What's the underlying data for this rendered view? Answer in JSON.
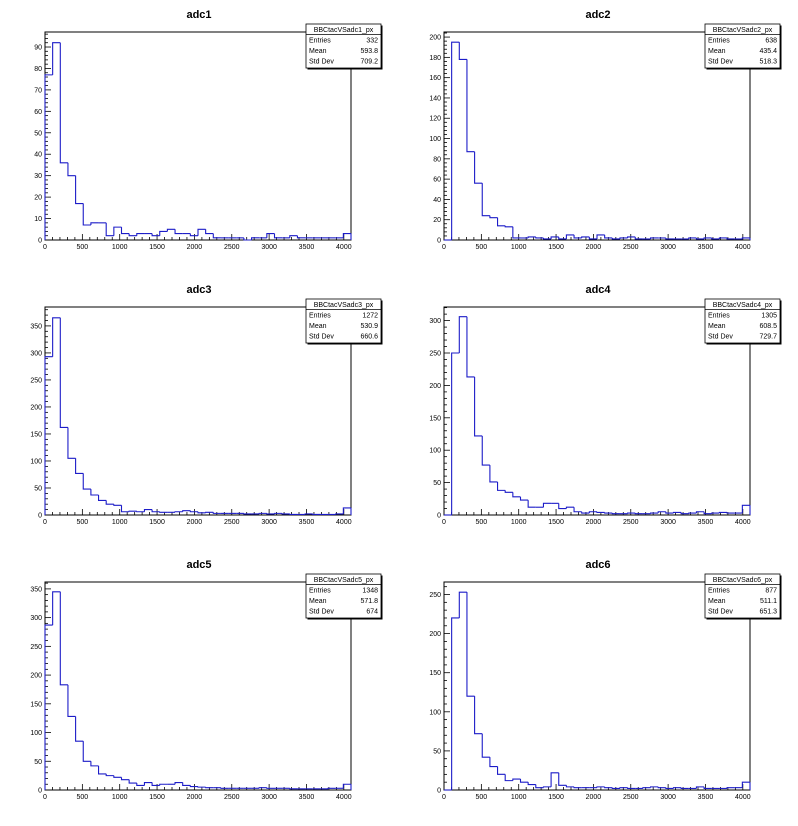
{
  "chart_data": [
    {
      "type": "bar",
      "title": "adc1",
      "xlim": [
        0,
        4096
      ],
      "ylim": [
        0,
        97
      ],
      "x_ticks": [
        0,
        500,
        1000,
        1500,
        2000,
        2500,
        3000,
        3500,
        4000
      ],
      "y_ticks": [
        0,
        10,
        20,
        30,
        40,
        50,
        60,
        70,
        80,
        90
      ],
      "bin_width": 102.4,
      "values": [
        77,
        92,
        36,
        30,
        17,
        7,
        8,
        8,
        2,
        6,
        3,
        2,
        3,
        3,
        2,
        4,
        5,
        3,
        3,
        2,
        5,
        3,
        1,
        1,
        1,
        1,
        0,
        1,
        1,
        3,
        1,
        1,
        2,
        1,
        1,
        1,
        1,
        1,
        1,
        3
      ],
      "stats": {
        "name": "BBCtacVSadc1_px",
        "rows": [
          {
            "label": "Entries",
            "value": "332"
          },
          {
            "label": "Mean",
            "value": "593.8"
          },
          {
            "label": "Std Dev",
            "value": "709.2"
          }
        ]
      }
    },
    {
      "type": "bar",
      "title": "adc2",
      "xlim": [
        0,
        4096
      ],
      "ylim": [
        0,
        205
      ],
      "x_ticks": [
        0,
        500,
        1000,
        1500,
        2000,
        2500,
        3000,
        3500,
        4000
      ],
      "y_ticks": [
        0,
        20,
        40,
        60,
        80,
        100,
        120,
        140,
        160,
        180,
        200
      ],
      "bin_width": 102.4,
      "values": [
        0,
        195,
        178,
        87,
        56,
        24,
        22,
        14,
        13,
        2,
        2,
        3,
        2,
        1,
        3,
        1,
        5,
        2,
        3,
        1,
        5,
        2,
        1,
        2,
        3,
        1,
        1,
        2,
        2,
        1,
        1,
        1,
        2,
        1,
        2,
        1,
        2,
        1,
        1,
        2
      ],
      "stats": {
        "name": "BBCtacVSadc2_px",
        "rows": [
          {
            "label": "Entries",
            "value": "638"
          },
          {
            "label": "Mean",
            "value": "435.4"
          },
          {
            "label": "Std Dev",
            "value": "518.3"
          }
        ]
      }
    },
    {
      "type": "bar",
      "title": "adc3",
      "xlim": [
        0,
        4096
      ],
      "ylim": [
        0,
        385
      ],
      "x_ticks": [
        0,
        500,
        1000,
        1500,
        2000,
        2500,
        3000,
        3500,
        4000
      ],
      "y_ticks": [
        0,
        50,
        100,
        150,
        200,
        250,
        300,
        350
      ],
      "bin_width": 102.4,
      "values": [
        293,
        365,
        162,
        105,
        77,
        48,
        37,
        27,
        20,
        18,
        6,
        7,
        6,
        10,
        6,
        5,
        5,
        6,
        8,
        6,
        4,
        5,
        3,
        3,
        3,
        3,
        2,
        2,
        3,
        2,
        3,
        2,
        1,
        1,
        2,
        1,
        1,
        1,
        2,
        13
      ],
      "stats": {
        "name": "BBCtacVSadc3_px",
        "rows": [
          {
            "label": "Entries",
            "value": "1272"
          },
          {
            "label": "Mean",
            "value": "530.9"
          },
          {
            "label": "Std Dev",
            "value": "660.6"
          }
        ]
      }
    },
    {
      "type": "bar",
      "title": "adc4",
      "xlim": [
        0,
        4096
      ],
      "ylim": [
        0,
        321
      ],
      "x_ticks": [
        0,
        500,
        1000,
        1500,
        2000,
        2500,
        3000,
        3500,
        4000
      ],
      "y_ticks": [
        0,
        50,
        100,
        150,
        200,
        250,
        300
      ],
      "bin_width": 102.4,
      "values": [
        0,
        250,
        306,
        213,
        122,
        77,
        51,
        38,
        35,
        28,
        23,
        12,
        12,
        18,
        18,
        10,
        12,
        5,
        3,
        5,
        4,
        3,
        2,
        2,
        3,
        2,
        2,
        3,
        5,
        3,
        4,
        2,
        3,
        5,
        2,
        3,
        4,
        3,
        3,
        15
      ],
      "stats": {
        "name": "BBCtacVSadc4_px",
        "rows": [
          {
            "label": "Entries",
            "value": "1305"
          },
          {
            "label": "Mean",
            "value": "608.5"
          },
          {
            "label": "Std Dev",
            "value": "729.7"
          }
        ]
      }
    },
    {
      "type": "bar",
      "title": "adc5",
      "xlim": [
        0,
        4096
      ],
      "ylim": [
        0,
        362
      ],
      "x_ticks": [
        0,
        500,
        1000,
        1500,
        2000,
        2500,
        3000,
        3500,
        4000
      ],
      "y_ticks": [
        0,
        50,
        100,
        150,
        200,
        250,
        300,
        350
      ],
      "bin_width": 102.4,
      "values": [
        287,
        345,
        183,
        128,
        85,
        50,
        42,
        28,
        25,
        22,
        18,
        12,
        8,
        13,
        8,
        10,
        10,
        13,
        8,
        6,
        5,
        4,
        4,
        3,
        3,
        3,
        3,
        3,
        4,
        3,
        3,
        3,
        2,
        2,
        2,
        2,
        2,
        3,
        3,
        10
      ],
      "stats": {
        "name": "BBCtacVSadc5_px",
        "rows": [
          {
            "label": "Entries",
            "value": "1348"
          },
          {
            "label": "Mean",
            "value": "571.8"
          },
          {
            "label": "Std Dev",
            "value": "674"
          }
        ]
      }
    },
    {
      "type": "bar",
      "title": "adc6",
      "xlim": [
        0,
        4096
      ],
      "ylim": [
        0,
        266
      ],
      "x_ticks": [
        0,
        500,
        1000,
        1500,
        2000,
        2500,
        3000,
        3500,
        4000
      ],
      "y_ticks": [
        0,
        50,
        100,
        150,
        200,
        250
      ],
      "bin_width": 102.4,
      "values": [
        0,
        220,
        253,
        120,
        72,
        42,
        30,
        20,
        12,
        14,
        10,
        7,
        3,
        4,
        22,
        6,
        4,
        3,
        3,
        3,
        4,
        3,
        2,
        3,
        2,
        2,
        3,
        4,
        3,
        2,
        3,
        2,
        2,
        4,
        2,
        2,
        2,
        3,
        3,
        10
      ],
      "stats": {
        "name": "BBCtacVSadc6_px",
        "rows": [
          {
            "label": "Entries",
            "value": "877"
          },
          {
            "label": "Mean",
            "value": "511.1"
          },
          {
            "label": "Std Dev",
            "value": "651.3"
          }
        ]
      }
    }
  ],
  "colors": {
    "histogram_line": "#1c1cc8",
    "axis": "#000000",
    "background": "#ffffff"
  }
}
